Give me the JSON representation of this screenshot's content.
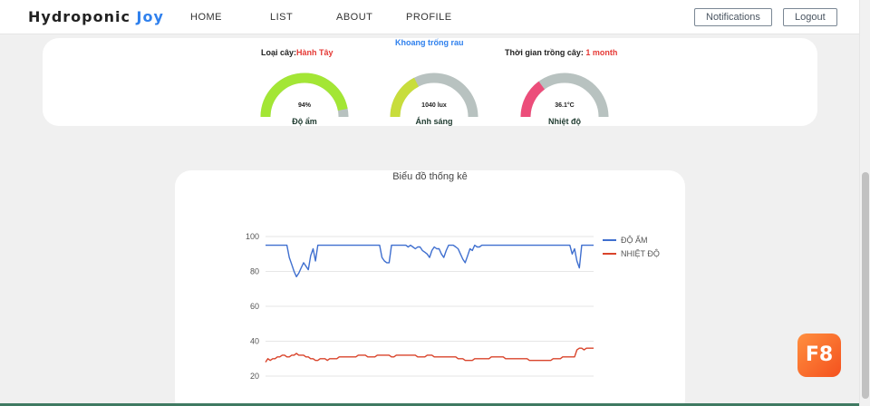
{
  "brand": {
    "name": "Hydroponic",
    "accent": "Joy"
  },
  "nav": {
    "home": "HOME",
    "list": "LIST",
    "about": "ABOUT",
    "profile": "PROFILE"
  },
  "actions": {
    "notifications": "Notifications",
    "logout": "Logout"
  },
  "sensor": {
    "plant_label": "Loại cây:",
    "plant_value": "Hành Tây",
    "space_label": "Khoang trống rau",
    "time_label": "Thời gian trồng cây: ",
    "time_value": "1 month",
    "gauges": [
      {
        "label": "Độ ẩm",
        "value_text": "94%",
        "fraction": 0.94,
        "color": "#a3e635",
        "track": "#b8c2c0"
      },
      {
        "label": "Ánh sáng",
        "value_text": "1040 lux",
        "fraction": 0.35,
        "color": "#c8dd3c",
        "track": "#b8c2c0"
      },
      {
        "label": "Nhiệt độ",
        "value_text": "36.1°C",
        "fraction": 0.3,
        "color": "#ec4d7a",
        "track": "#b8c2c0"
      }
    ]
  },
  "chart_title": "Biểu đồ thống kê",
  "chart_data": {
    "type": "line",
    "title": "Biểu đồ thống kê",
    "ylim": [
      20,
      100
    ],
    "yticks": [
      "20",
      "40",
      "60",
      "80",
      "100"
    ],
    "grid": true,
    "legend_position": "right",
    "series": [
      {
        "name": "ĐỘ ẨM",
        "color": "#3f6fcf",
        "values": [
          95,
          95,
          95,
          95,
          95,
          95,
          95,
          95,
          95,
          95,
          88,
          84,
          80,
          77,
          79,
          82,
          85,
          83,
          81,
          89,
          93,
          86,
          95,
          95,
          95,
          95,
          95,
          95,
          95,
          95,
          95,
          95,
          95,
          95,
          95,
          95,
          95,
          95,
          95,
          95,
          95,
          95,
          95,
          95,
          95,
          95,
          95,
          95,
          95,
          88,
          86,
          85,
          85,
          95,
          95,
          95,
          95,
          95,
          95,
          95,
          94,
          95,
          94,
          93,
          94,
          94,
          92,
          91,
          90,
          88,
          92,
          94,
          93,
          93,
          90,
          88,
          92,
          95,
          95,
          95,
          94,
          93,
          90,
          87,
          85,
          89,
          93,
          92,
          95,
          94,
          94,
          95,
          95,
          95,
          95,
          95,
          95,
          95,
          95,
          95,
          95,
          95,
          95,
          95,
          95,
          95,
          95,
          95,
          95,
          95,
          95,
          95,
          95,
          95,
          95,
          95,
          95,
          95,
          95,
          95,
          95,
          95,
          95,
          95,
          95,
          95,
          95,
          95,
          95,
          90,
          93,
          86,
          82,
          95,
          95,
          95,
          95,
          95,
          95
        ]
      },
      {
        "name": "NHIỆT ĐỘ",
        "color": "#d9442b",
        "values": [
          28,
          30,
          29,
          30,
          30,
          31,
          31,
          32,
          32,
          31,
          31,
          32,
          32,
          33,
          32,
          32,
          32,
          31,
          31,
          30,
          30,
          29,
          29,
          30,
          30,
          30,
          29,
          30,
          30,
          30,
          30,
          31,
          31,
          31,
          31,
          31,
          31,
          31,
          31,
          32,
          32,
          32,
          32,
          31,
          31,
          31,
          31,
          32,
          32,
          32,
          32,
          32,
          32,
          31,
          31,
          32,
          32,
          32,
          32,
          32,
          32,
          32,
          32,
          32,
          31,
          31,
          31,
          31,
          32,
          32,
          32,
          31,
          31,
          31,
          31,
          31,
          31,
          31,
          31,
          31,
          31,
          30,
          30,
          30,
          29,
          29,
          29,
          29,
          30,
          30,
          30,
          30,
          30,
          30,
          30,
          31,
          31,
          31,
          31,
          31,
          31,
          30,
          30,
          30,
          30,
          30,
          30,
          30,
          30,
          30,
          30,
          29,
          29,
          29,
          29,
          29,
          29,
          29,
          29,
          29,
          29,
          30,
          30,
          30,
          30,
          31,
          31,
          31,
          31,
          31,
          31,
          35,
          36,
          36,
          35,
          36,
          36,
          36,
          36
        ]
      }
    ]
  }
}
